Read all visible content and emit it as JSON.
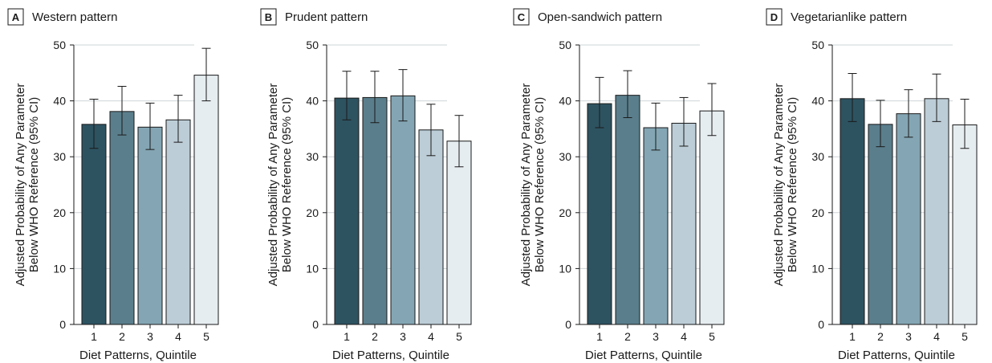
{
  "chart_data": [
    {
      "type": "bar",
      "panel": "A",
      "title": "Western pattern",
      "xlabel": "Diet Patterns, Quintile",
      "ylabel": [
        "Adjusted Probability of Any Parameter",
        "Below WHO Reference (95% CI)"
      ],
      "ylim": [
        0,
        50
      ],
      "yticks": [
        0,
        10,
        20,
        30,
        40,
        50
      ],
      "grid": true,
      "categories": [
        "1",
        "2",
        "3",
        "4",
        "5"
      ],
      "values": [
        35.8,
        38.1,
        35.3,
        36.6,
        44.6
      ],
      "ci_low": [
        31.5,
        33.9,
        31.3,
        32.6,
        40.0
      ],
      "ci_high": [
        40.3,
        42.6,
        39.6,
        41.0,
        49.4
      ]
    },
    {
      "type": "bar",
      "panel": "B",
      "title": "Prudent pattern",
      "xlabel": "Diet Patterns, Quintile",
      "ylabel": [
        "Adjusted Probability of Any Parameter",
        "Below WHO Reference (95% CI)"
      ],
      "ylim": [
        0,
        50
      ],
      "yticks": [
        0,
        10,
        20,
        30,
        40,
        50
      ],
      "grid": true,
      "categories": [
        "1",
        "2",
        "3",
        "4",
        "5"
      ],
      "values": [
        40.5,
        40.6,
        40.9,
        34.8,
        32.8
      ],
      "ci_low": [
        36.6,
        36.1,
        36.4,
        30.2,
        28.2
      ],
      "ci_high": [
        45.3,
        45.3,
        45.6,
        39.4,
        37.4
      ]
    },
    {
      "type": "bar",
      "panel": "C",
      "title": "Open-sandwich pattern",
      "xlabel": "Diet Patterns, Quintile",
      "ylabel": [
        "Adjusted Probability of Any Parameter",
        "Below WHO Reference (95% CI)"
      ],
      "ylim": [
        0,
        50
      ],
      "yticks": [
        0,
        10,
        20,
        30,
        40,
        50
      ],
      "grid": true,
      "categories": [
        "1",
        "2",
        "3",
        "4",
        "5"
      ],
      "values": [
        39.5,
        41.0,
        35.2,
        36.0,
        38.2
      ],
      "ci_low": [
        35.2,
        37.0,
        31.2,
        31.9,
        33.8
      ],
      "ci_high": [
        44.2,
        45.4,
        39.6,
        40.6,
        43.1
      ]
    },
    {
      "type": "bar",
      "panel": "D",
      "title": "Vegetarianlike pattern",
      "xlabel": "Diet Patterns, Quintile",
      "ylabel": [
        "Adjusted Probability of Any Parameter",
        "Below WHO Reference (95% CI)"
      ],
      "ylim": [
        0,
        50
      ],
      "yticks": [
        0,
        10,
        20,
        30,
        40,
        50
      ],
      "grid": true,
      "categories": [
        "1",
        "2",
        "3",
        "4",
        "5"
      ],
      "values": [
        40.4,
        35.8,
        37.7,
        40.4,
        35.7
      ],
      "ci_low": [
        36.3,
        31.8,
        33.5,
        36.3,
        31.5
      ],
      "ci_high": [
        44.9,
        40.1,
        42.0,
        44.8,
        40.3
      ]
    }
  ],
  "colors": {
    "quintile_fills": [
      "#2d5361",
      "#5a7e8c",
      "#84a6b4",
      "#bccdd7",
      "#e6edf1"
    ],
    "grid": "#cfd4d8",
    "axis": "#1a1a1a"
  }
}
